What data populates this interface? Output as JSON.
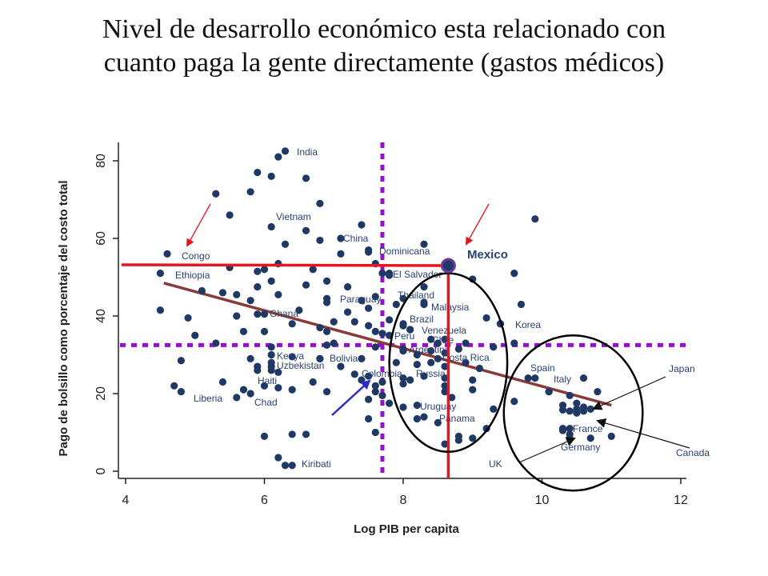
{
  "title_lines": [
    "Nivel de desarrollo económico esta relacionado con",
    "cuanto paga la gente directamente (gastos médicos)"
  ],
  "colors": {
    "points": "#1f3864",
    "labels": "#2a4272",
    "red": "#e8141e",
    "purple": "#8f14c8",
    "trend": "#8b3a3a",
    "circles": "#000000",
    "arrow_blue": "#2c2ccc"
  },
  "chart_data": {
    "type": "scatter",
    "xlabel": "Log PIB per capita",
    "ylabel": "Pago de bolsillo como porcentaje del costo total",
    "xlim": [
      4,
      12
    ],
    "ylim": [
      -2,
      85
    ],
    "xticks": [
      4,
      6,
      8,
      10,
      12
    ],
    "yticks": [
      0,
      20,
      40,
      60,
      80
    ],
    "grid": false,
    "labeled_points": [
      {
        "label": "India",
        "x": 6.3,
        "y": 82.5
      },
      {
        "label": "Vietnam",
        "x": 6.1,
        "y": 63
      },
      {
        "label": "China",
        "x": 7.1,
        "y": 60
      },
      {
        "label": "Congo",
        "x": 4.6,
        "y": 56
      },
      {
        "label": "Dominicana",
        "x": 7.5,
        "y": 57
      },
      {
        "label": "Ethiopia",
        "x": 4.5,
        "y": 51
      },
      {
        "label": "El Salvador",
        "x": 7.8,
        "y": 51
      },
      {
        "label": "Thailand",
        "x": 8.0,
        "y": 44.5
      },
      {
        "label": "Paraguay",
        "x": 6.9,
        "y": 44.5
      },
      {
        "label": "Malaysia",
        "x": 8.3,
        "y": 43
      },
      {
        "label": "Ghana",
        "x": 5.9,
        "y": 40.5
      },
      {
        "label": "Brazil",
        "x": 8.0,
        "y": 37.5
      },
      {
        "label": "Korea",
        "x": 9.4,
        "y": 38
      },
      {
        "label": "Venezuela",
        "x": 8.1,
        "y": 36.5
      },
      {
        "label": "Peru",
        "x": 7.8,
        "y": 35
      },
      {
        "label": "Chile",
        "x": 8.4,
        "y": 34
      },
      {
        "label": "Argentina",
        "x": 8.0,
        "y": 31.5
      },
      {
        "label": "Kenya",
        "x": 6.1,
        "y": 30
      },
      {
        "label": "Bolivia",
        "x": 6.8,
        "y": 29
      },
      {
        "label": "Costa Rica",
        "x": 8.5,
        "y": 29
      },
      {
        "label": "Uzbekistan",
        "x": 6.1,
        "y": 27
      },
      {
        "label": "Colombia",
        "x": 7.4,
        "y": 23.5
      },
      {
        "label": "Russia",
        "x": 8.1,
        "y": 23.5
      },
      {
        "label": "Spain",
        "x": 9.9,
        "y": 24
      },
      {
        "label": "Haiti",
        "x": 5.9,
        "y": 26
      },
      {
        "label": "Italy",
        "x": 10.1,
        "y": 20.5
      },
      {
        "label": "Japan",
        "x": 10.3,
        "y": 15.8
      },
      {
        "label": "Liberia",
        "x": 4.8,
        "y": 20.5
      },
      {
        "label": "Chad",
        "x": 5.8,
        "y": 20
      },
      {
        "label": "Uruguay",
        "x": 8.0,
        "y": 16.5
      },
      {
        "label": "Panama",
        "x": 8.3,
        "y": 14
      },
      {
        "label": "France",
        "x": 10.3,
        "y": 11
      },
      {
        "label": "Germany",
        "x": 10.4,
        "y": 9.5
      },
      {
        "label": "Canada",
        "x": 10.5,
        "y": 16
      },
      {
        "label": "Kiribati",
        "x": 6.4,
        "y": 1.5
      },
      {
        "label": "UK",
        "x": 10.4,
        "y": 8.5
      }
    ],
    "points": [
      [
        6.2,
        81
      ],
      [
        6.6,
        75.5
      ],
      [
        5.3,
        71.5
      ],
      [
        5.9,
        77
      ],
      [
        6.1,
        76
      ],
      [
        5.8,
        72
      ],
      [
        6.8,
        69
      ],
      [
        5.5,
        66
      ],
      [
        9.9,
        65
      ],
      [
        7.4,
        63.5
      ],
      [
        6.6,
        62
      ],
      [
        7.5,
        56.5
      ],
      [
        6.3,
        58.5
      ],
      [
        6.8,
        59.5
      ],
      [
        8.3,
        58.5
      ],
      [
        7.1,
        56
      ],
      [
        7.6,
        53.5
      ],
      [
        6.2,
        53.5
      ],
      [
        5.5,
        52.5
      ],
      [
        6.0,
        52
      ],
      [
        5.9,
        51.5
      ],
      [
        6.7,
        52
      ],
      [
        9.6,
        51
      ],
      [
        7.7,
        51
      ],
      [
        7.8,
        50.5
      ],
      [
        6.1,
        49
      ],
      [
        8.3,
        47.5
      ],
      [
        6.6,
        48
      ],
      [
        6.9,
        49
      ],
      [
        7.2,
        47.5
      ],
      [
        9.0,
        49.5
      ],
      [
        5.4,
        46
      ],
      [
        5.1,
        46.5
      ],
      [
        5.9,
        47.5
      ],
      [
        5.6,
        45.5
      ],
      [
        5.8,
        44
      ],
      [
        6.2,
        45.5
      ],
      [
        7.6,
        45
      ],
      [
        6.9,
        43.5
      ],
      [
        7.2,
        41
      ],
      [
        7.5,
        42
      ],
      [
        7.4,
        44
      ],
      [
        8.3,
        43.5
      ],
      [
        7.9,
        43
      ],
      [
        9.7,
        43
      ],
      [
        4.5,
        41.5
      ],
      [
        4.9,
        39.5
      ],
      [
        5.6,
        40
      ],
      [
        6.0,
        40.5
      ],
      [
        6.5,
        41.5
      ],
      [
        7.3,
        38.5
      ],
      [
        6.4,
        38
      ],
      [
        7.0,
        38.5
      ],
      [
        7.8,
        39
      ],
      [
        8.0,
        38
      ],
      [
        9.2,
        39.5
      ],
      [
        9.4,
        38
      ],
      [
        5.0,
        35
      ],
      [
        5.7,
        36
      ],
      [
        6.0,
        36
      ],
      [
        6.8,
        37
      ],
      [
        6.9,
        36
      ],
      [
        7.5,
        37.5
      ],
      [
        7.6,
        36
      ],
      [
        7.7,
        35.5
      ],
      [
        8.1,
        36.5
      ],
      [
        8.5,
        33
      ],
      [
        8.6,
        34
      ],
      [
        8.9,
        33
      ],
      [
        9.3,
        32
      ],
      [
        9.6,
        33
      ],
      [
        5.3,
        33
      ],
      [
        6.1,
        32
      ],
      [
        6.9,
        32.5
      ],
      [
        7.0,
        33
      ],
      [
        7.6,
        32
      ],
      [
        8.0,
        31
      ],
      [
        8.2,
        30
      ],
      [
        8.4,
        31
      ],
      [
        8.6,
        30.5
      ],
      [
        8.8,
        31.5
      ],
      [
        4.8,
        28.5
      ],
      [
        5.8,
        29
      ],
      [
        6.1,
        28
      ],
      [
        6.4,
        29.5
      ],
      [
        6.8,
        29
      ],
      [
        7.1,
        27
      ],
      [
        7.4,
        29
      ],
      [
        7.9,
        28
      ],
      [
        8.2,
        27.5
      ],
      [
        8.4,
        28
      ],
      [
        8.6,
        27
      ],
      [
        8.9,
        28
      ],
      [
        9.1,
        26.5
      ],
      [
        5.9,
        27
      ],
      [
        6.1,
        26
      ],
      [
        6.2,
        25.5
      ],
      [
        7.3,
        25
      ],
      [
        7.5,
        24.5
      ],
      [
        7.7,
        23
      ],
      [
        8.0,
        24
      ],
      [
        8.3,
        24.5
      ],
      [
        8.6,
        24
      ],
      [
        9.0,
        23.5
      ],
      [
        9.8,
        24
      ],
      [
        10.6,
        24
      ],
      [
        4.7,
        22
      ],
      [
        5.4,
        23
      ],
      [
        6.0,
        22
      ],
      [
        6.7,
        23
      ],
      [
        7.6,
        22
      ],
      [
        8.0,
        22.5
      ],
      [
        8.6,
        22
      ],
      [
        9.0,
        21
      ],
      [
        5.7,
        21
      ],
      [
        6.2,
        21.5
      ],
      [
        6.4,
        21
      ],
      [
        6.9,
        20.5
      ],
      [
        7.6,
        20.5
      ],
      [
        7.7,
        19.5
      ],
      [
        8.6,
        20.5
      ],
      [
        8.7,
        19
      ],
      [
        10.1,
        20.5
      ],
      [
        10.4,
        19.5
      ],
      [
        10.8,
        20.5
      ],
      [
        5.6,
        19
      ],
      [
        7.5,
        18.5
      ],
      [
        7.8,
        17.5
      ],
      [
        8.2,
        17
      ],
      [
        9.3,
        16
      ],
      [
        9.6,
        18
      ],
      [
        10.3,
        17
      ],
      [
        10.5,
        17.5
      ],
      [
        10.6,
        16.5
      ],
      [
        10.7,
        16
      ],
      [
        10.4,
        15.5
      ],
      [
        10.5,
        15
      ],
      [
        10.6,
        15.5
      ],
      [
        7.5,
        13.5
      ],
      [
        8.2,
        13.5
      ],
      [
        8.5,
        12.5
      ],
      [
        9.2,
        11
      ],
      [
        10.4,
        11
      ],
      [
        10.3,
        10.5
      ],
      [
        8.8,
        9
      ],
      [
        9.0,
        8.5
      ],
      [
        10.7,
        8.5
      ],
      [
        6.0,
        9
      ],
      [
        6.4,
        9.5
      ],
      [
        6.6,
        9.5
      ],
      [
        7.6,
        10
      ],
      [
        11.0,
        9
      ],
      [
        8.8,
        8
      ],
      [
        8.6,
        7
      ],
      [
        6.2,
        3.5
      ],
      [
        6.3,
        1.5
      ]
    ],
    "mexico_point": {
      "label": "Mexico",
      "x": 8.65,
      "y": 53
    },
    "reference_lines": {
      "x": 7.7,
      "y": 32.5
    },
    "mexico_lines": {
      "x": 8.65,
      "y": 53
    },
    "trend_line": [
      [
        4.55,
        48.5
      ],
      [
        11.0,
        17
      ]
    ],
    "circles": [
      {
        "cx": 8.65,
        "cy": 28,
        "rx": 0.85,
        "ry": 23
      },
      {
        "cx": 10.45,
        "cy": 15,
        "rx": 1.0,
        "ry": 20
      }
    ]
  }
}
